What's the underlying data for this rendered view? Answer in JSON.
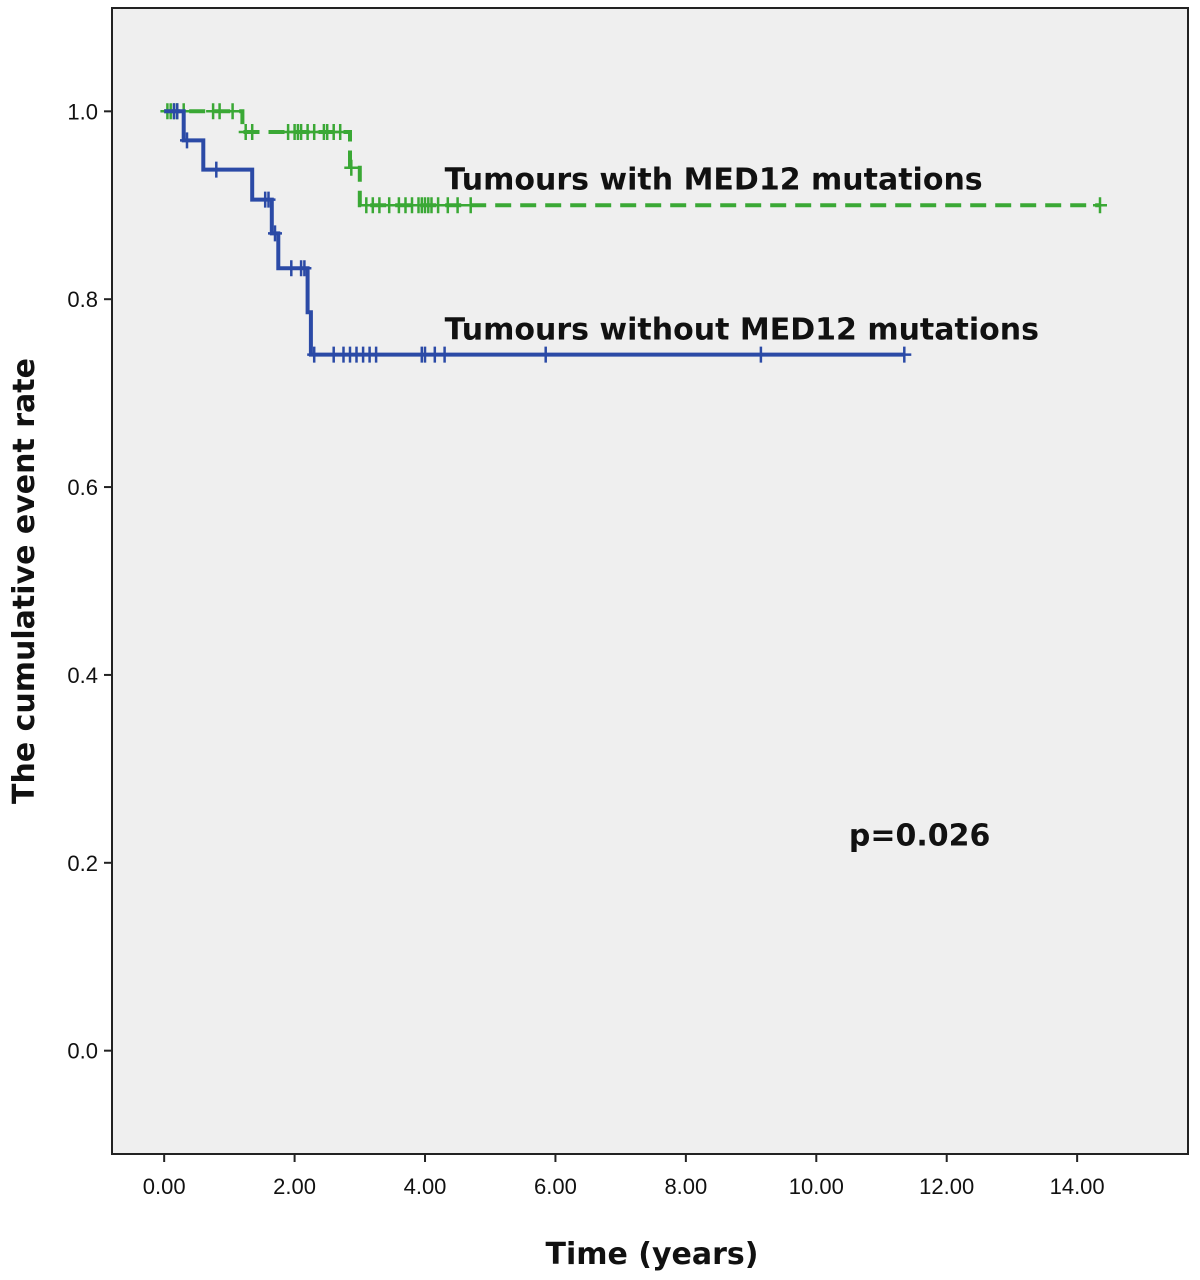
{
  "chart_data": {
    "type": "line",
    "subtype": "kaplan-meier step plot",
    "xlabel": "Time (years)",
    "ylabel": "The cumulative event rate",
    "xlim": [
      -0.8,
      15.7
    ],
    "ylim": [
      -0.11,
      1.11
    ],
    "xticks": [
      0,
      2,
      4,
      6,
      8,
      10,
      12,
      14
    ],
    "xtick_labels": [
      "0.00",
      "2.00",
      "4.00",
      "6.00",
      "8.00",
      "10.00",
      "12.00",
      "14.00"
    ],
    "yticks": [
      0,
      0.2,
      0.4,
      0.6,
      0.8,
      1.0
    ],
    "ytick_labels": [
      "0.0",
      "0.2",
      "0.4",
      "0.6",
      "0.8",
      "1.0"
    ],
    "grid": false,
    "background": "#efefef",
    "annotations": [
      {
        "text": "Tumours with MED12 mutations",
        "x": 4.3,
        "y": 0.9,
        "series": 0
      },
      {
        "text": "Tumours without MED12 mutations",
        "x": 4.3,
        "y": 0.74,
        "series": 1
      },
      {
        "text": "p=0.026",
        "x": 10.5,
        "y": 0.23
      }
    ],
    "series": [
      {
        "label": "Tumours with MED12 mutations",
        "color": "#3aa835",
        "style": "dashed",
        "steps": [
          [
            0,
            1.0
          ],
          [
            1.2,
            0.978
          ],
          [
            2.85,
            0.94
          ],
          [
            3.0,
            0.9
          ],
          [
            14.35,
            0.9
          ]
        ],
        "censored": [
          [
            0.05,
            1.0
          ],
          [
            0.1,
            1.0
          ],
          [
            0.15,
            1.0
          ],
          [
            0.2,
            1.0
          ],
          [
            0.3,
            1.0
          ],
          [
            0.75,
            1.0
          ],
          [
            0.85,
            1.0
          ],
          [
            1.05,
            1.0
          ],
          [
            1.25,
            0.978
          ],
          [
            1.35,
            0.978
          ],
          [
            1.9,
            0.978
          ],
          [
            2.0,
            0.978
          ],
          [
            2.05,
            0.978
          ],
          [
            2.1,
            0.978
          ],
          [
            2.2,
            0.978
          ],
          [
            2.3,
            0.978
          ],
          [
            2.45,
            0.978
          ],
          [
            2.5,
            0.978
          ],
          [
            2.6,
            0.978
          ],
          [
            2.7,
            0.978
          ],
          [
            2.87,
            0.94
          ],
          [
            3.1,
            0.9
          ],
          [
            3.2,
            0.9
          ],
          [
            3.3,
            0.9
          ],
          [
            3.45,
            0.9
          ],
          [
            3.6,
            0.9
          ],
          [
            3.7,
            0.9
          ],
          [
            3.8,
            0.9
          ],
          [
            3.9,
            0.9
          ],
          [
            3.95,
            0.9
          ],
          [
            4.0,
            0.9
          ],
          [
            4.05,
            0.9
          ],
          [
            4.1,
            0.9
          ],
          [
            4.2,
            0.9
          ],
          [
            4.35,
            0.9
          ],
          [
            4.5,
            0.9
          ],
          [
            4.7,
            0.9
          ],
          [
            14.35,
            0.9
          ]
        ]
      },
      {
        "label": "Tumours without MED12 mutations",
        "color": "#2b4aa6",
        "style": "solid",
        "steps": [
          [
            0,
            1.0
          ],
          [
            0.3,
            0.969
          ],
          [
            0.6,
            0.938
          ],
          [
            1.35,
            0.906
          ],
          [
            1.65,
            0.87
          ],
          [
            1.75,
            0.833
          ],
          [
            2.2,
            0.786
          ],
          [
            2.25,
            0.741
          ],
          [
            11.35,
            0.741
          ]
        ],
        "censored": [
          [
            0.15,
            1.0
          ],
          [
            0.2,
            1.0
          ],
          [
            0.35,
            0.969
          ],
          [
            0.8,
            0.938
          ],
          [
            1.55,
            0.906
          ],
          [
            1.6,
            0.906
          ],
          [
            1.7,
            0.87
          ],
          [
            1.95,
            0.833
          ],
          [
            2.1,
            0.833
          ],
          [
            2.15,
            0.833
          ],
          [
            2.3,
            0.741
          ],
          [
            2.6,
            0.741
          ],
          [
            2.75,
            0.741
          ],
          [
            2.85,
            0.741
          ],
          [
            2.95,
            0.741
          ],
          [
            3.05,
            0.741
          ],
          [
            3.15,
            0.741
          ],
          [
            3.25,
            0.741
          ],
          [
            3.95,
            0.741
          ],
          [
            4.0,
            0.741
          ],
          [
            4.15,
            0.741
          ],
          [
            4.3,
            0.741
          ],
          [
            5.85,
            0.741
          ],
          [
            9.15,
            0.741
          ],
          [
            11.35,
            0.741
          ]
        ]
      }
    ]
  }
}
